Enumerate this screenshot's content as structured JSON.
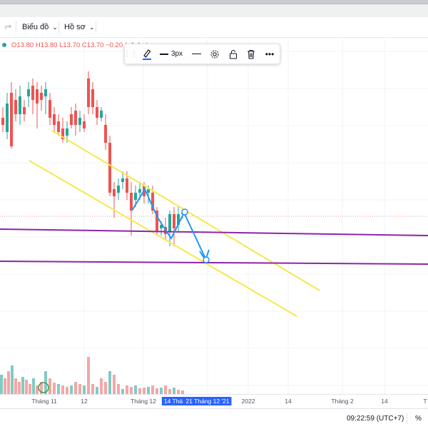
{
  "toolbar": {
    "redo_icon": "redo-arrow",
    "chart_menu_label": "Biểu đồ",
    "profile_menu_label": "Hồ sơ"
  },
  "legend": {
    "open": "O13.80",
    "high": "H13.80",
    "low": "L13.70",
    "close": "C13.70",
    "change": "−0.20 (−1.4...)",
    "colors": {
      "text": "#ef5350",
      "dot": "#26a69a"
    }
  },
  "drawing_toolbar": {
    "brush_icon": "pencil-icon",
    "line_width_label": "3px",
    "line_style_icon": "line-style-icon",
    "settings_icon": "gear-icon",
    "lock_icon": "lock-icon",
    "delete_icon": "trash-icon",
    "more_icon": "more-icon"
  },
  "time_axis": {
    "ticks": [
      "Tháng 11",
      "12",
      "Tháng 12",
      "14 Thá",
      "21 Tháng 12 '21",
      "2022",
      "14",
      "Tháng 2",
      "14",
      "T"
    ],
    "highlighted": [
      "14 Thá",
      "21 Tháng 12 '21"
    ]
  },
  "status": {
    "time": "09:22:59 (UTC+7)",
    "percent_label": "%"
  },
  "colors": {
    "up": "#26a69a",
    "down": "#ef5350",
    "channel": "#f5e94a",
    "support": "#8e24aa",
    "arrow": "#2196f3"
  }
}
